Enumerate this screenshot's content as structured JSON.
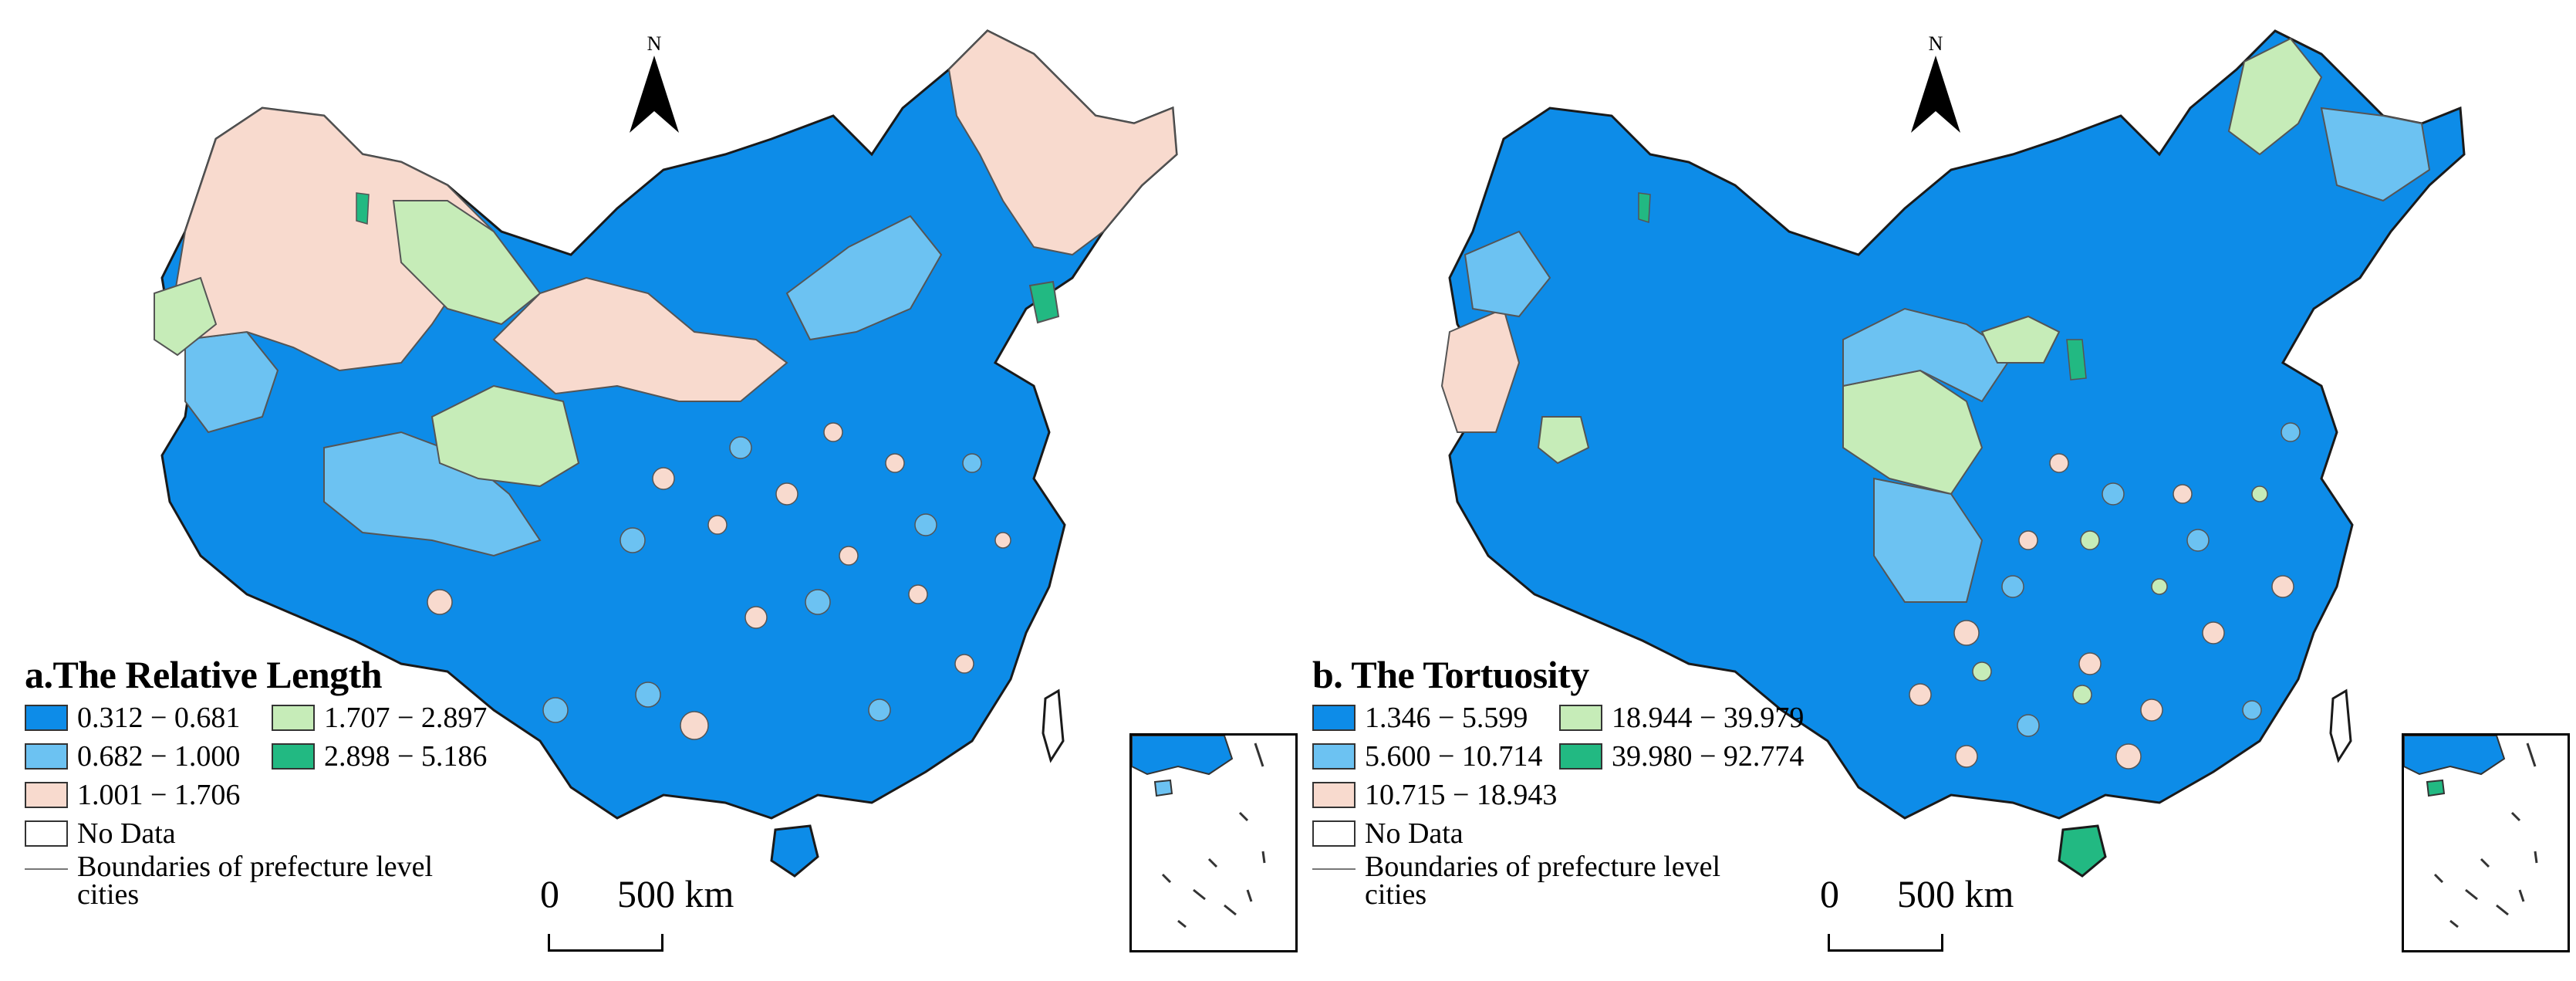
{
  "maps": [
    {
      "id": "a",
      "legend_title": "a.The Relative Length",
      "classes": [
        {
          "label": "0.312 − 0.681",
          "color": "#0d8ce8"
        },
        {
          "label": "1.707 − 2.897",
          "color": "#c6ecb8"
        },
        {
          "label": "0.682 − 1.000",
          "color": "#6cc2f2"
        },
        {
          "label": "2.898 − 5.186",
          "color": "#22b982"
        },
        {
          "label": "1.001 − 1.706",
          "color": "#f8dace"
        }
      ],
      "no_data_label": "No Data",
      "boundary_label": "Boundaries of prefecture level cities"
    },
    {
      "id": "b",
      "legend_title": "b. The Tortuosity",
      "classes": [
        {
          "label": "1.346 − 5.599",
          "color": "#0d8ce8"
        },
        {
          "label": "18.944 − 39.979",
          "color": "#c6ecb8"
        },
        {
          "label": "5.600 − 10.714",
          "color": "#6cc2f2"
        },
        {
          "label": "39.980 − 92.774",
          "color": "#22b982"
        },
        {
          "label": "10.715 − 18.943",
          "color": "#f8dace"
        }
      ],
      "no_data_label": "No Data",
      "boundary_label": "Boundaries of prefecture level cities"
    }
  ],
  "north_label": "N",
  "scale": {
    "zero": "0",
    "distance": "500",
    "unit": "km"
  },
  "colors": {
    "boundary": "#555555",
    "province_boundary": "#1a1a1a",
    "no_data": "#ffffff"
  }
}
